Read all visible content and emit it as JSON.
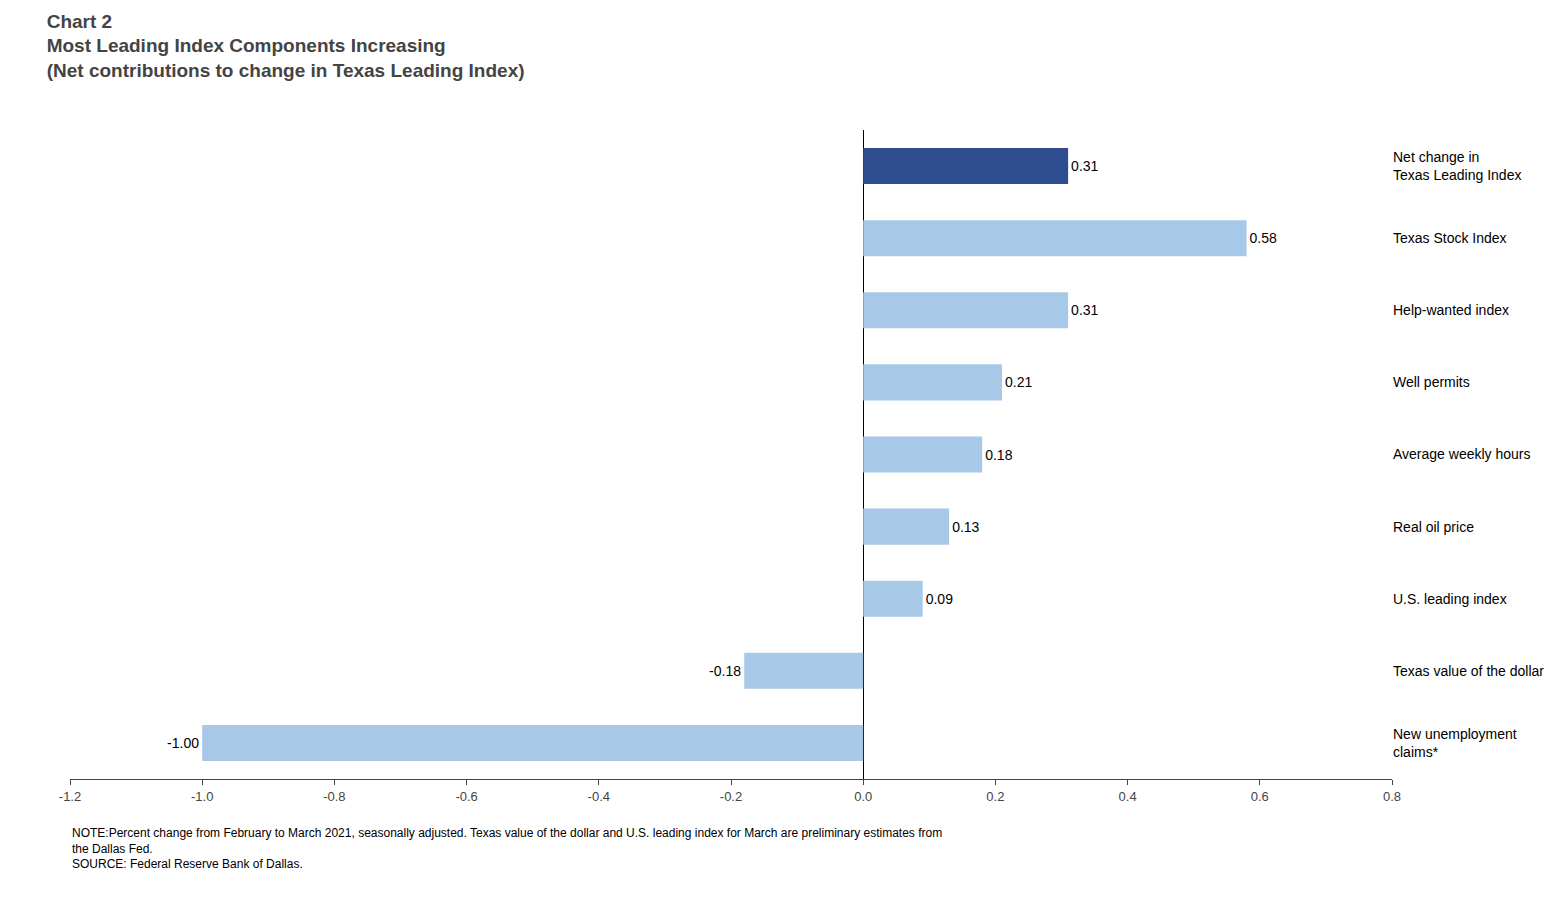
{
  "chart_data": {
    "type": "bar",
    "orientation": "horizontal",
    "title": "Chart 2\nMost Leading Index Components Increasing\n(Net contributions to change in Texas Leading Index)",
    "categories": [
      "Net change in\nTexas Leading Index",
      "Texas Stock Index",
      "Help-wanted index",
      "Well permits",
      "Average weekly hours",
      "Real oil price",
      "U.S. leading index",
      "Texas value of the dollar",
      "New unemployment\nclaims*"
    ],
    "values": [
      0.31,
      0.58,
      0.31,
      0.21,
      0.18,
      0.13,
      0.09,
      -0.18,
      -1.0
    ],
    "value_labels": [
      "0.31",
      "0.58",
      "0.31",
      "0.21",
      "0.18",
      "0.13",
      "0.09",
      "-0.18",
      "-1.00"
    ],
    "colors": [
      "#2E4D8E",
      "#A8C8E8",
      "#A8C8E8",
      "#A8C8E8",
      "#A8C8E8",
      "#A8C8E8",
      "#A8C8E8",
      "#A8C8E8",
      "#A8C8E8"
    ],
    "xlim": [
      -1.2,
      0.8
    ],
    "xticks": [
      -1.2,
      {
        "value": -1.0,
        "label": "-1.0"
      },
      -0.8,
      -0.6,
      -0.4,
      -0.2,
      {
        "value": 0.0,
        "label": "0.0"
      },
      0.2,
      0.4,
      0.6,
      0.8
    ],
    "grid": false,
    "data_labels": true,
    "annotations": [
      "NOTE:Percent change from February to March 2021, seasonally adjusted. Texas value of the dollar and U.S. leading index for March are preliminary estimates from\nthe Dallas Fed.\nSOURCE: Federal Reserve Bank of Dallas."
    ]
  }
}
